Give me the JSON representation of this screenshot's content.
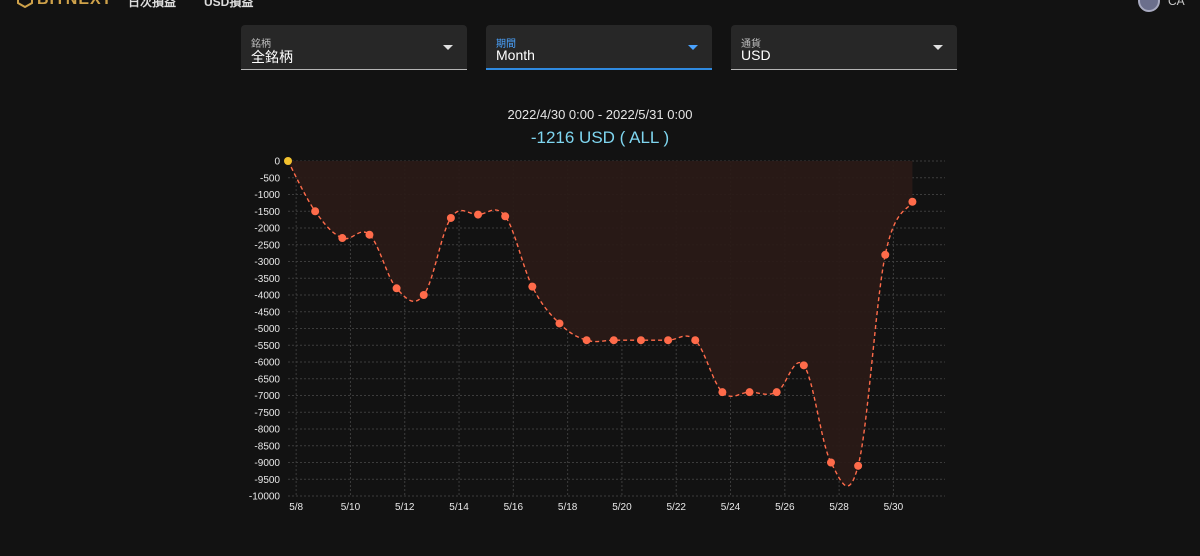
{
  "header": {
    "logo_text": "BITNEXT",
    "nav": [
      "日次損益",
      "USD損益"
    ],
    "user": "CA"
  },
  "filters": [
    {
      "label": "銘柄",
      "value": "全銘柄",
      "active": false
    },
    {
      "label": "期間",
      "value": "Month",
      "active": true
    },
    {
      "label": "通貨",
      "value": "USD",
      "active": false
    }
  ],
  "summary": {
    "range": "2022/4/30 0:00 - 2022/5/31 0:00",
    "total": "-1216 USD ( ALL )"
  },
  "colors": {
    "line": "#ff6b4a",
    "start_point": "#f2c12e",
    "area": "#2a1a17",
    "grid": "#3c3c3c",
    "total_text": "#7fd6f0",
    "active_accent": "#2f8ae0"
  },
  "chart_data": {
    "type": "line",
    "title": "",
    "xlabel": "",
    "ylabel": "",
    "ylim": [
      -10000,
      0
    ],
    "y_ticks": [
      0,
      -500,
      -1000,
      -1500,
      -2000,
      -2500,
      -3000,
      -3500,
      -4000,
      -4500,
      -5000,
      -5500,
      -6000,
      -6500,
      -7000,
      -7500,
      -8000,
      -8500,
      -9000,
      -9500,
      -10000
    ],
    "x_tick_labels": [
      "5/8",
      "5/10",
      "5/12",
      "5/14",
      "5/16",
      "5/18",
      "5/20",
      "5/22",
      "5/24",
      "5/26",
      "5/28",
      "5/30"
    ],
    "x_tick_days": [
      8,
      10,
      12,
      14,
      16,
      18,
      20,
      22,
      24,
      26,
      28,
      30
    ],
    "xlim": [
      7.7,
      31.9
    ],
    "grid": true,
    "area_fill": true,
    "line_style": "dashed",
    "series": [
      {
        "x": [
          7.7,
          8.7,
          9.7,
          10.7,
          11.7,
          12.7,
          13.7,
          14.7,
          15.7,
          16.7,
          17.7,
          18.7,
          19.7,
          20.7,
          21.7,
          22.7,
          23.7,
          24.7,
          25.7,
          26.7,
          27.7,
          28.7,
          29.7,
          30.7
        ],
        "y": [
          0,
          -1500,
          -2300,
          -2200,
          -3800,
          -4000,
          -1700,
          -1600,
          -1650,
          -3750,
          -4850,
          -5350,
          -5350,
          -5350,
          -5350,
          -5350,
          -6900,
          -6900,
          -6900,
          -6100,
          -9000,
          -9100,
          -2800,
          -1216
        ]
      }
    ]
  }
}
